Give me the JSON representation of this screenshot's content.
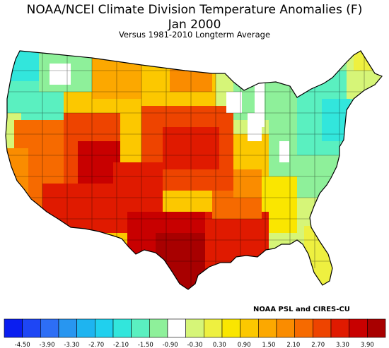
{
  "header": {
    "title": "NOAA/NCEI Climate Division Temperature Anomalies (F)",
    "period": "Jan 2000",
    "subtitle": "Versus 1981-2010 Longterm Average"
  },
  "credit": "NOAA PSL and CIRES-CU",
  "legend": {
    "bins": [
      "#0a1ef0",
      "#1e46f5",
      "#2d6ef5",
      "#2896f0",
      "#1eb4f0",
      "#20d0ee",
      "#32e6dc",
      "#5af0c0",
      "#8ef09a",
      "#ffffff",
      "#d6f578",
      "#eef040",
      "#fae600",
      "#fcc800",
      "#fca800",
      "#fa8c00",
      "#f66a00",
      "#ee4400",
      "#e01a00",
      "#c80000",
      "#a80000"
    ],
    "ticks": [
      "-4.50",
      "-3.90",
      "-3.30",
      "-2.70",
      "-2.10",
      "-1.50",
      "-0.90",
      "-0.30",
      "0.30",
      "0.90",
      "1.50",
      "2.10",
      "2.70",
      "3.30",
      "3.90"
    ]
  },
  "map": {
    "background": "#ffffff",
    "outline": "#000000"
  }
}
